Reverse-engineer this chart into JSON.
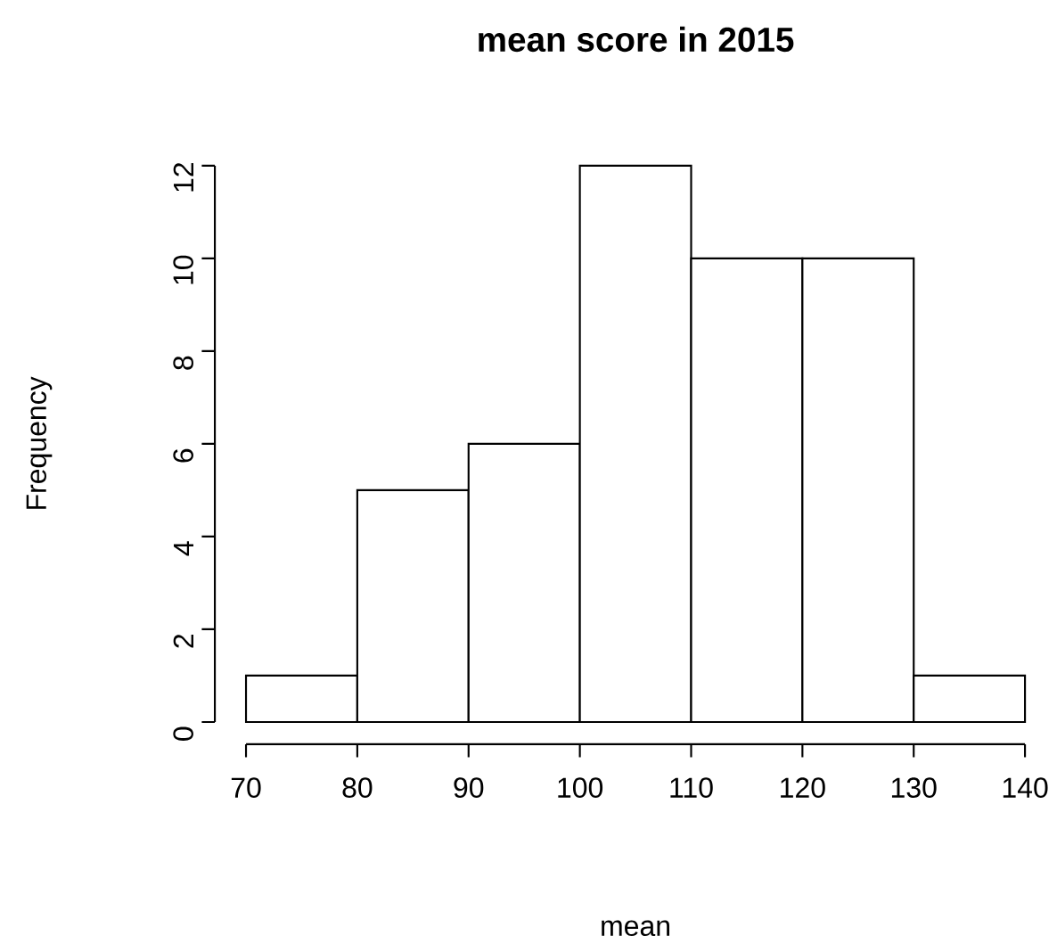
{
  "chart_data": {
    "type": "histogram",
    "title": "mean score in 2015",
    "xlabel": "mean",
    "ylabel": "Frequency",
    "bins": [
      70,
      80,
      90,
      100,
      110,
      120,
      130,
      140
    ],
    "values": [
      1,
      5,
      6,
      12,
      10,
      10,
      1
    ],
    "color": "#ffffff",
    "xlim": [
      70,
      140
    ],
    "ylim": [
      0,
      12
    ],
    "xticks": [
      70,
      80,
      90,
      100,
      110,
      120,
      130,
      140
    ],
    "yticks": [
      0,
      2,
      4,
      6,
      8,
      10,
      12
    ]
  }
}
